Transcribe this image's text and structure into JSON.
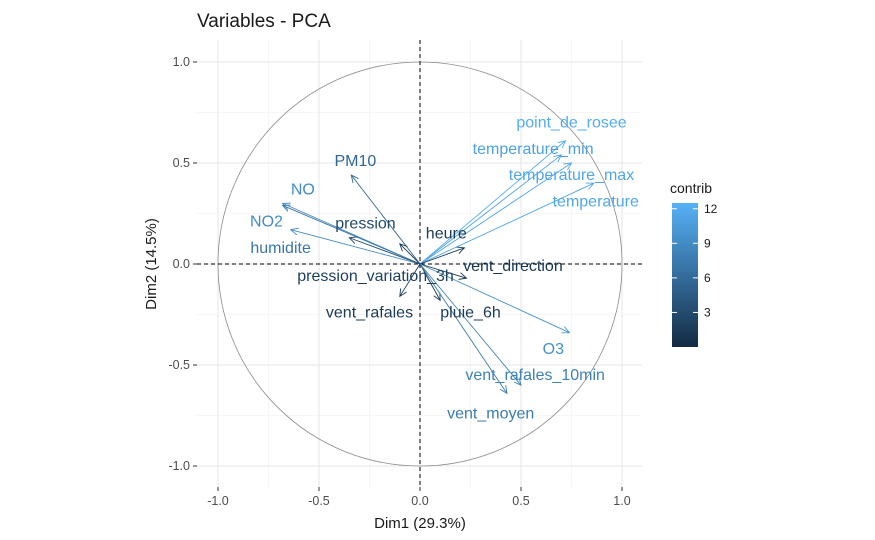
{
  "chart_data": {
    "type": "scatter",
    "title": "Variables - PCA",
    "xlabel": "Dim1 (29.3%)",
    "ylabel": "Dim2 (14.5%)",
    "xlim": [
      -1.05,
      1.05
    ],
    "ylim": [
      -1.08,
      1.08
    ],
    "x_ticks": [
      -1.0,
      -0.5,
      0.0,
      0.5,
      1.0
    ],
    "x_tick_labels": [
      "-1.0",
      "-0.5",
      "0.0",
      "0.5",
      "1.0"
    ],
    "y_ticks": [
      -1.0,
      -0.5,
      0.0,
      0.5,
      1.0
    ],
    "y_tick_labels": [
      "-1.0",
      "-0.5",
      "0.0",
      "0.5",
      "1.0"
    ],
    "grid": true,
    "correlation_circle": true,
    "legend": {
      "title": "contrib",
      "placement": "right",
      "min": 0,
      "max": 12.5,
      "ticks": [
        3,
        6,
        9,
        12
      ],
      "tick_labels": [
        "3",
        "6",
        "9",
        "12"
      ],
      "color_low": "#132B43",
      "color_high": "#56B1F7"
    },
    "variables": [
      {
        "name": "point_de_rosee",
        "x": 0.72,
        "y": 0.61,
        "contrib": 12.0,
        "label_x": 0.75,
        "label_y": 0.7
      },
      {
        "name": "temperature_min",
        "x": 0.7,
        "y": 0.54,
        "contrib": 11.0,
        "label_x": 0.56,
        "label_y": 0.57
      },
      {
        "name": "temperature_max",
        "x": 0.75,
        "y": 0.5,
        "contrib": 11.5,
        "label_x": 0.75,
        "label_y": 0.44
      },
      {
        "name": "temperature",
        "x": 0.86,
        "y": 0.4,
        "contrib": 11.5,
        "label_x": 0.87,
        "label_y": 0.31
      },
      {
        "name": "NO",
        "x": -0.68,
        "y": 0.3,
        "contrib": 9.0,
        "label_x": -0.58,
        "label_y": 0.37
      },
      {
        "name": "NO2",
        "x": -0.64,
        "y": 0.17,
        "contrib": 9.0,
        "label_x": -0.76,
        "label_y": 0.21
      },
      {
        "name": "humidite",
        "x": -0.68,
        "y": 0.29,
        "contrib": 7.0,
        "label_x": -0.69,
        "label_y": 0.08
      },
      {
        "name": "PM10",
        "x": -0.34,
        "y": 0.44,
        "contrib": 5.5,
        "label_x": -0.32,
        "label_y": 0.51
      },
      {
        "name": "pression",
        "x": -0.35,
        "y": 0.13,
        "contrib": 3.0,
        "label_x": -0.27,
        "label_y": 0.2
      },
      {
        "name": "heure",
        "x": 0.22,
        "y": 0.08,
        "contrib": 1.5,
        "label_x": 0.13,
        "label_y": 0.15
      },
      {
        "name": "vent_direction",
        "x": 0.23,
        "y": -0.07,
        "contrib": 1.2,
        "label_x": 0.46,
        "label_y": -0.01
      },
      {
        "name": "pression_variation_3h",
        "x": -0.1,
        "y": 0.1,
        "contrib": 1.8,
        "label_x": -0.22,
        "label_y": -0.06
      },
      {
        "name": "vent_rafales",
        "x": -0.1,
        "y": -0.16,
        "contrib": 1.5,
        "label_x": -0.25,
        "label_y": -0.24
      },
      {
        "name": "pluie_6h",
        "x": 0.1,
        "y": -0.18,
        "contrib": 1.5,
        "label_x": 0.25,
        "label_y": -0.24
      },
      {
        "name": "O3",
        "x": 0.74,
        "y": -0.34,
        "contrib": 9.5,
        "label_x": 0.66,
        "label_y": -0.42
      },
      {
        "name": "vent_rafales_10min",
        "x": 0.5,
        "y": -0.6,
        "contrib": 8.0,
        "label_x": 0.57,
        "label_y": -0.55
      },
      {
        "name": "vent_moyen",
        "x": 0.43,
        "y": -0.64,
        "contrib": 7.5,
        "label_x": 0.35,
        "label_y": -0.74
      }
    ]
  }
}
